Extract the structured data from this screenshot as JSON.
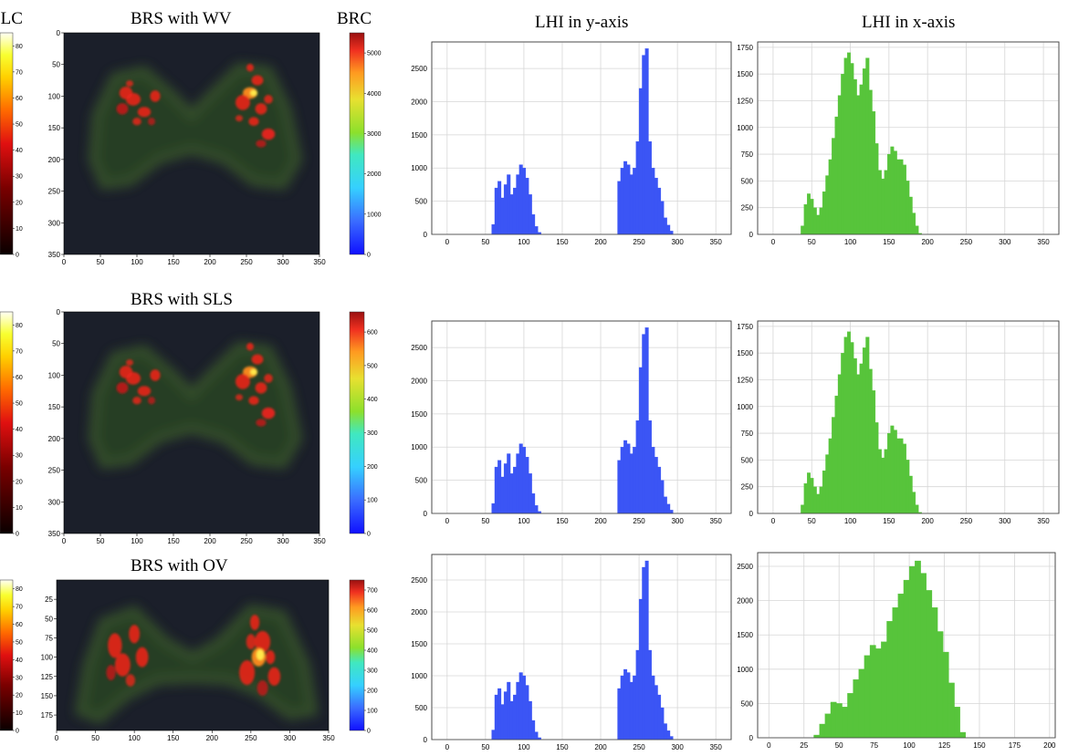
{
  "labels": {
    "blc": "BLC",
    "brc": "BRC",
    "col_y": "LHI in y-axis",
    "col_x": "LHI in x-axis",
    "row1": "BRS with WV",
    "row2": "BRS with SLS",
    "row3": "BRS with OV"
  },
  "colors": {
    "blue_bar": "#3b55f5",
    "green_bar": "#57c43b",
    "heatmap_bg": "#1b1f2a"
  },
  "chart_data": [
    {
      "id": "heatmap-wv",
      "type": "heatmap",
      "title": "BRS with WV",
      "x_ticks": [
        "0",
        "50",
        "100",
        "150",
        "200",
        "250",
        "300",
        "350"
      ],
      "y_ticks": [
        "0",
        "50",
        "100",
        "150",
        "200",
        "250",
        "300",
        "350"
      ],
      "xlim": [
        0,
        350
      ],
      "ylim": [
        350,
        0
      ],
      "left_colorbar": {
        "label": "BLC",
        "ticks": [
          "0",
          "10",
          "20",
          "30",
          "40",
          "50",
          "60",
          "70",
          "80"
        ],
        "range": [
          0,
          85
        ],
        "colormap": "hot"
      },
      "right_colorbar": {
        "label": "BRC",
        "ticks": [
          "0",
          "1000",
          "2000",
          "3000",
          "4000",
          "5000"
        ],
        "range": [
          0,
          5500
        ],
        "colormap": "jet"
      }
    },
    {
      "id": "heatmap-sls",
      "type": "heatmap",
      "title": "BRS with SLS",
      "x_ticks": [
        "0",
        "50",
        "100",
        "150",
        "200",
        "250",
        "300",
        "350"
      ],
      "y_ticks": [
        "0",
        "50",
        "100",
        "150",
        "200",
        "250",
        "300",
        "350"
      ],
      "xlim": [
        0,
        350
      ],
      "ylim": [
        350,
        0
      ],
      "left_colorbar": {
        "label": "",
        "ticks": [
          "0",
          "10",
          "20",
          "30",
          "40",
          "50",
          "60",
          "70",
          "80"
        ],
        "range": [
          0,
          85
        ],
        "colormap": "hot"
      },
      "right_colorbar": {
        "label": "",
        "ticks": [
          "0",
          "100",
          "200",
          "300",
          "400",
          "500",
          "600"
        ],
        "range": [
          0,
          660
        ],
        "colormap": "jet"
      }
    },
    {
      "id": "heatmap-ov",
      "type": "heatmap",
      "title": "BRS with OV",
      "x_ticks": [
        "0",
        "50",
        "100",
        "150",
        "200",
        "250",
        "300",
        "350"
      ],
      "y_ticks": [
        "25",
        "50",
        "75",
        "100",
        "125",
        "150",
        "175"
      ],
      "xlim": [
        0,
        350
      ],
      "ylim": [
        195,
        0
      ],
      "left_colorbar": {
        "label": "",
        "ticks": [
          "0",
          "10",
          "20",
          "30",
          "40",
          "50",
          "60",
          "70",
          "80"
        ],
        "range": [
          0,
          85
        ],
        "colormap": "hot"
      },
      "right_colorbar": {
        "label": "",
        "ticks": [
          "0",
          "100",
          "200",
          "300",
          "400",
          "500",
          "600",
          "700"
        ],
        "range": [
          0,
          750
        ],
        "colormap": "jet"
      }
    },
    {
      "id": "hist-y-1",
      "type": "bar",
      "title": "LHI in y-axis",
      "color": "blue",
      "xlim": [
        -20,
        370
      ],
      "ylim": [
        0,
        2900
      ],
      "x_ticks": [
        0,
        50,
        100,
        150,
        200,
        250,
        300,
        350
      ],
      "y_ticks": [
        0,
        500,
        1000,
        1500,
        2000,
        2500
      ],
      "x": [
        60,
        64,
        68,
        72,
        76,
        80,
        84,
        88,
        92,
        96,
        100,
        104,
        108,
        112,
        116,
        120,
        224,
        228,
        232,
        236,
        240,
        244,
        248,
        252,
        256,
        260,
        264,
        268,
        272,
        276,
        280,
        284,
        288,
        292
      ],
      "values": [
        150,
        700,
        800,
        550,
        750,
        900,
        600,
        700,
        900,
        1050,
        1000,
        850,
        600,
        300,
        120,
        30,
        800,
        1000,
        1100,
        1050,
        900,
        1000,
        1400,
        2200,
        2700,
        2800,
        1400,
        1000,
        850,
        700,
        500,
        250,
        140,
        50
      ]
    },
    {
      "id": "hist-x-1",
      "type": "bar",
      "title": "LHI in x-axis",
      "color": "green",
      "xlim": [
        -20,
        370
      ],
      "ylim": [
        0,
        1800
      ],
      "x_ticks": [
        0,
        50,
        100,
        150,
        200,
        250,
        300,
        350
      ],
      "y_ticks": [
        0,
        250,
        500,
        750,
        1000,
        1250,
        1500,
        1750
      ],
      "x": [
        38,
        42,
        46,
        50,
        54,
        58,
        62,
        66,
        70,
        74,
        78,
        82,
        86,
        90,
        94,
        98,
        102,
        106,
        110,
        114,
        118,
        122,
        126,
        130,
        134,
        138,
        142,
        146,
        150,
        154,
        158,
        162,
        166,
        170,
        174,
        178,
        182,
        186,
        190
      ],
      "values": [
        80,
        280,
        380,
        330,
        250,
        180,
        250,
        400,
        550,
        700,
        900,
        1100,
        1300,
        1500,
        1650,
        1700,
        1600,
        1450,
        1300,
        1400,
        1550,
        1650,
        1350,
        1150,
        850,
        600,
        520,
        600,
        750,
        820,
        780,
        700,
        700,
        650,
        500,
        350,
        200,
        80,
        10
      ]
    },
    {
      "id": "hist-y-2",
      "type": "bar",
      "title": "",
      "color": "blue",
      "xlim": [
        -20,
        370
      ],
      "ylim": [
        0,
        2900
      ],
      "x_ticks": [
        0,
        50,
        100,
        150,
        200,
        250,
        300,
        350
      ],
      "y_ticks": [
        0,
        500,
        1000,
        1500,
        2000,
        2500
      ],
      "x": [
        60,
        64,
        68,
        72,
        76,
        80,
        84,
        88,
        92,
        96,
        100,
        104,
        108,
        112,
        116,
        120,
        224,
        228,
        232,
        236,
        240,
        244,
        248,
        252,
        256,
        260,
        264,
        268,
        272,
        276,
        280,
        284,
        288,
        292
      ],
      "values": [
        150,
        700,
        800,
        550,
        750,
        900,
        600,
        700,
        900,
        1050,
        1000,
        850,
        600,
        300,
        120,
        30,
        800,
        1000,
        1100,
        1050,
        900,
        1000,
        1400,
        2200,
        2700,
        2800,
        1400,
        1000,
        850,
        700,
        500,
        250,
        140,
        50
      ]
    },
    {
      "id": "hist-x-2",
      "type": "bar",
      "title": "",
      "color": "green",
      "xlim": [
        -20,
        370
      ],
      "ylim": [
        0,
        1800
      ],
      "x_ticks": [
        0,
        50,
        100,
        150,
        200,
        250,
        300,
        350
      ],
      "y_ticks": [
        0,
        250,
        500,
        750,
        1000,
        1250,
        1500,
        1750
      ],
      "x": [
        38,
        42,
        46,
        50,
        54,
        58,
        62,
        66,
        70,
        74,
        78,
        82,
        86,
        90,
        94,
        98,
        102,
        106,
        110,
        114,
        118,
        122,
        126,
        130,
        134,
        138,
        142,
        146,
        150,
        154,
        158,
        162,
        166,
        170,
        174,
        178,
        182,
        186,
        190
      ],
      "values": [
        80,
        280,
        380,
        330,
        250,
        180,
        250,
        400,
        550,
        700,
        900,
        1100,
        1300,
        1500,
        1650,
        1700,
        1600,
        1450,
        1300,
        1400,
        1550,
        1650,
        1350,
        1150,
        850,
        600,
        520,
        600,
        750,
        820,
        780,
        700,
        700,
        650,
        500,
        350,
        200,
        80,
        10
      ]
    },
    {
      "id": "hist-y-3",
      "type": "bar",
      "title": "",
      "color": "blue",
      "xlim": [
        -20,
        370
      ],
      "ylim": [
        0,
        2900
      ],
      "x_ticks": [
        0,
        50,
        100,
        150,
        200,
        250,
        300,
        350
      ],
      "y_ticks": [
        0,
        500,
        1000,
        1500,
        2000,
        2500
      ],
      "x": [
        60,
        64,
        68,
        72,
        76,
        80,
        84,
        88,
        92,
        96,
        100,
        104,
        108,
        112,
        116,
        120,
        224,
        228,
        232,
        236,
        240,
        244,
        248,
        252,
        256,
        260,
        264,
        268,
        272,
        276,
        280,
        284,
        288,
        292
      ],
      "values": [
        150,
        700,
        800,
        550,
        750,
        900,
        600,
        700,
        900,
        1050,
        1000,
        850,
        600,
        300,
        120,
        30,
        800,
        1000,
        1100,
        1050,
        900,
        1000,
        1400,
        2200,
        2700,
        2800,
        1400,
        1000,
        850,
        700,
        500,
        250,
        140,
        50
      ]
    },
    {
      "id": "hist-x-3",
      "type": "bar",
      "title": "",
      "color": "green",
      "xlim": [
        -8,
        204
      ],
      "ylim": [
        0,
        2700
      ],
      "x_ticks": [
        0,
        25,
        50,
        75,
        100,
        125,
        150,
        175,
        200
      ],
      "y_ticks": [
        0,
        500,
        1000,
        1500,
        2000,
        2500
      ],
      "x": [
        34,
        38,
        42,
        46,
        50,
        54,
        58,
        62,
        66,
        70,
        74,
        78,
        82,
        86,
        90,
        94,
        98,
        102,
        106,
        110,
        114,
        118,
        122,
        126,
        130,
        134,
        138
      ],
      "values": [
        40,
        200,
        350,
        520,
        500,
        450,
        650,
        850,
        1000,
        1200,
        1350,
        1300,
        1400,
        1700,
        1900,
        2100,
        2300,
        2500,
        2580,
        2400,
        2150,
        1900,
        1550,
        1250,
        800,
        450,
        80
      ]
    }
  ]
}
